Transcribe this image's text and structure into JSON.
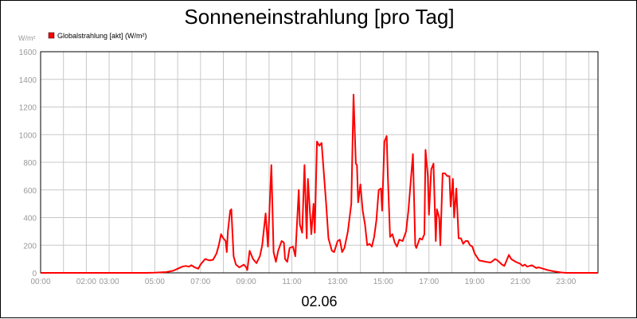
{
  "chart_data": {
    "type": "line",
    "title": "Sonneneinstrahlung [pro Tag]",
    "ylabel": "W/m²",
    "xlabel": "02.06",
    "ylim": [
      0,
      1600
    ],
    "xlim": [
      0,
      24.4
    ],
    "grid": true,
    "legend_position": "top-left",
    "yticks": [
      0,
      200,
      400,
      600,
      800,
      1000,
      1200,
      1400,
      1600
    ],
    "yticks_labels": [
      "0",
      "200",
      "400",
      "600",
      "800",
      "1000",
      "1200",
      "1400",
      "1600"
    ],
    "xticks": [
      0,
      1,
      2,
      3,
      4,
      5,
      6,
      7,
      8,
      9,
      10,
      11,
      12,
      13,
      14,
      15,
      16,
      17,
      18,
      19,
      20,
      21,
      22,
      23,
      24
    ],
    "xticks_labels": [
      {
        "x": 0,
        "label": "00:00"
      },
      {
        "x": 2,
        "label": "02:00"
      },
      {
        "x": 3,
        "label": "03:00"
      },
      {
        "x": 5,
        "label": "05:00"
      },
      {
        "x": 7,
        "label": "07:00"
      },
      {
        "x": 9,
        "label": "09:00"
      },
      {
        "x": 11,
        "label": "11:00"
      },
      {
        "x": 13,
        "label": "13:00"
      },
      {
        "x": 15,
        "label": "15:00"
      },
      {
        "x": 17,
        "label": "17:00"
      },
      {
        "x": 19,
        "label": "19:00"
      },
      {
        "x": 21,
        "label": "21:00"
      },
      {
        "x": 23,
        "label": "23:00"
      }
    ],
    "series": [
      {
        "name": "Globalstrahlung [akt] (W/m²)",
        "color": "#ff0000",
        "points": [
          [
            0,
            0
          ],
          [
            4.6,
            0
          ],
          [
            5.0,
            2
          ],
          [
            5.5,
            6
          ],
          [
            5.8,
            15
          ],
          [
            6.0,
            30
          ],
          [
            6.2,
            45
          ],
          [
            6.35,
            50
          ],
          [
            6.5,
            45
          ],
          [
            6.6,
            55
          ],
          [
            6.75,
            40
          ],
          [
            6.9,
            30
          ],
          [
            7.0,
            60
          ],
          [
            7.2,
            100
          ],
          [
            7.4,
            90
          ],
          [
            7.55,
            95
          ],
          [
            7.7,
            140
          ],
          [
            7.8,
            200
          ],
          [
            7.9,
            280
          ],
          [
            8.0,
            250
          ],
          [
            8.1,
            230
          ],
          [
            8.15,
            150
          ],
          [
            8.2,
            300
          ],
          [
            8.3,
            450
          ],
          [
            8.35,
            460
          ],
          [
            8.45,
            120
          ],
          [
            8.55,
            60
          ],
          [
            8.7,
            40
          ],
          [
            8.9,
            60
          ],
          [
            9.0,
            40
          ],
          [
            9.05,
            20
          ],
          [
            9.15,
            160
          ],
          [
            9.3,
            100
          ],
          [
            9.45,
            70
          ],
          [
            9.6,
            120
          ],
          [
            9.7,
            200
          ],
          [
            9.85,
            430
          ],
          [
            9.95,
            190
          ],
          [
            10.1,
            780
          ],
          [
            10.2,
            150
          ],
          [
            10.3,
            80
          ],
          [
            10.4,
            160
          ],
          [
            10.55,
            230
          ],
          [
            10.65,
            220
          ],
          [
            10.7,
            100
          ],
          [
            10.8,
            80
          ],
          [
            10.9,
            180
          ],
          [
            11.05,
            190
          ],
          [
            11.15,
            120
          ],
          [
            11.3,
            600
          ],
          [
            11.35,
            350
          ],
          [
            11.45,
            290
          ],
          [
            11.55,
            780
          ],
          [
            11.65,
            250
          ],
          [
            11.7,
            680
          ],
          [
            11.85,
            280
          ],
          [
            11.95,
            500
          ],
          [
            12.0,
            290
          ],
          [
            12.1,
            950
          ],
          [
            12.2,
            920
          ],
          [
            12.3,
            940
          ],
          [
            12.5,
            500
          ],
          [
            12.6,
            250
          ],
          [
            12.75,
            160
          ],
          [
            12.85,
            150
          ],
          [
            13.0,
            230
          ],
          [
            13.1,
            240
          ],
          [
            13.2,
            150
          ],
          [
            13.3,
            180
          ],
          [
            13.45,
            300
          ],
          [
            13.6,
            500
          ],
          [
            13.7,
            1290
          ],
          [
            13.8,
            790
          ],
          [
            13.85,
            780
          ],
          [
            13.9,
            510
          ],
          [
            14.0,
            640
          ],
          [
            14.1,
            450
          ],
          [
            14.2,
            350
          ],
          [
            14.3,
            200
          ],
          [
            14.4,
            210
          ],
          [
            14.5,
            190
          ],
          [
            14.6,
            260
          ],
          [
            14.7,
            380
          ],
          [
            14.8,
            600
          ],
          [
            14.9,
            610
          ],
          [
            14.95,
            450
          ],
          [
            15.05,
            950
          ],
          [
            15.15,
            990
          ],
          [
            15.2,
            700
          ],
          [
            15.3,
            260
          ],
          [
            15.4,
            280
          ],
          [
            15.5,
            220
          ],
          [
            15.6,
            190
          ],
          [
            15.7,
            240
          ],
          [
            15.85,
            230
          ],
          [
            16.0,
            300
          ],
          [
            16.1,
            450
          ],
          [
            16.3,
            860
          ],
          [
            16.4,
            200
          ],
          [
            16.45,
            180
          ],
          [
            16.6,
            250
          ],
          [
            16.7,
            240
          ],
          [
            16.8,
            280
          ],
          [
            16.85,
            890
          ],
          [
            16.95,
            700
          ],
          [
            17.0,
            420
          ],
          [
            17.1,
            750
          ],
          [
            17.2,
            790
          ],
          [
            17.3,
            230
          ],
          [
            17.35,
            460
          ],
          [
            17.45,
            400
          ],
          [
            17.5,
            200
          ],
          [
            17.6,
            720
          ],
          [
            17.7,
            720
          ],
          [
            17.8,
            700
          ],
          [
            17.9,
            700
          ],
          [
            17.95,
            480
          ],
          [
            18.05,
            680
          ],
          [
            18.1,
            400
          ],
          [
            18.2,
            610
          ],
          [
            18.3,
            250
          ],
          [
            18.4,
            250
          ],
          [
            18.5,
            210
          ],
          [
            18.6,
            230
          ],
          [
            18.7,
            230
          ],
          [
            18.8,
            200
          ],
          [
            18.9,
            190
          ],
          [
            19.0,
            140
          ],
          [
            19.2,
            90
          ],
          [
            19.5,
            80
          ],
          [
            19.7,
            75
          ],
          [
            19.9,
            100
          ],
          [
            20.0,
            90
          ],
          [
            20.2,
            60
          ],
          [
            20.3,
            50
          ],
          [
            20.45,
            110
          ],
          [
            20.5,
            130
          ],
          [
            20.6,
            100
          ],
          [
            20.8,
            80
          ],
          [
            21.0,
            65
          ],
          [
            21.1,
            50
          ],
          [
            21.2,
            60
          ],
          [
            21.3,
            45
          ],
          [
            21.5,
            55
          ],
          [
            21.7,
            35
          ],
          [
            21.8,
            40
          ],
          [
            22.0,
            30
          ],
          [
            22.2,
            20
          ],
          [
            22.5,
            10
          ],
          [
            22.8,
            3
          ],
          [
            23.0,
            0
          ],
          [
            24.4,
            0
          ]
        ]
      }
    ]
  }
}
